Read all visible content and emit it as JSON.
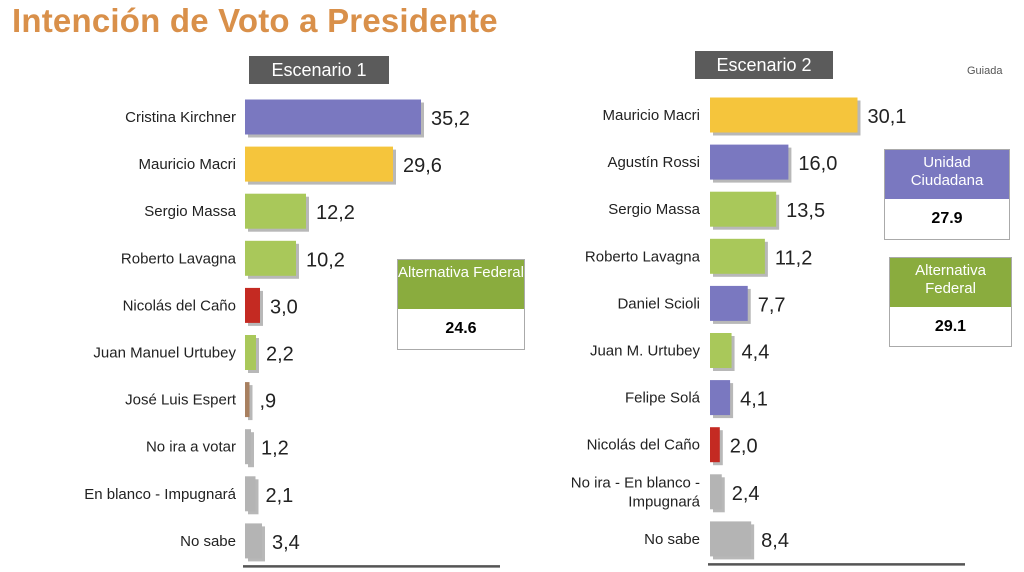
{
  "title": "Intención de Voto a Presidente",
  "source_note": "Guiada",
  "colors": {
    "title": "#d9904a",
    "purple": "#7a78c0",
    "yellow": "#f5c53c",
    "green": "#a9c85a",
    "red": "#c42a22",
    "grey": "#b4b4b4",
    "header_bg": "#5b5b5b"
  },
  "chart_data": [
    {
      "type": "bar",
      "orientation": "horizontal",
      "title": "Escenario 1",
      "categories": [
        "Cristina Kirchner",
        "Mauricio Macri",
        "Sergio Massa",
        "Roberto Lavagna",
        "Nicolás del Caño",
        "Juan Manuel Urtubey",
        "José Luis Espert",
        "No ira a votar",
        "En blanco - Impugnará",
        "No sabe"
      ],
      "values": [
        35.2,
        29.6,
        12.2,
        10.2,
        3.0,
        2.2,
        0.9,
        1.2,
        2.1,
        3.4
      ],
      "value_labels": [
        "35,2",
        "29,6",
        "12,2",
        "10,2",
        "3,0",
        "2,2",
        ",9",
        "1,2",
        "2,1",
        "3,4"
      ],
      "colors": [
        "purple",
        "yellow",
        "green",
        "green",
        "red",
        "green",
        "brown",
        "grey",
        "grey",
        "grey"
      ],
      "grid": false,
      "legend": "none"
    },
    {
      "type": "bar",
      "orientation": "horizontal",
      "title": "Escenario 2",
      "categories": [
        "Mauricio Macri",
        "Agustín Rossi",
        "Sergio Massa",
        "Roberto Lavagna",
        "Daniel Scioli",
        "Juan M. Urtubey",
        "Felipe Solá",
        "Nicolás del Caño",
        "No ira - En blanco - Impugnará",
        "No sabe"
      ],
      "values": [
        30.1,
        16.0,
        13.5,
        11.2,
        7.7,
        4.4,
        4.1,
        2.0,
        2.4,
        8.4
      ],
      "value_labels": [
        "30,1",
        "16,0",
        "13,5",
        "11,2",
        "7,7",
        "4,4",
        "4,1",
        "2,0",
        "2,4",
        "8,4"
      ],
      "colors": [
        "yellow",
        "purple",
        "green",
        "green",
        "purple",
        "green",
        "purple",
        "red",
        "grey",
        "grey"
      ],
      "grid": false,
      "legend": "none"
    }
  ],
  "summaries": {
    "scenario1": {
      "label": "Alternativa Federal",
      "value": "24.6"
    },
    "scenario2_uc": {
      "label": "Unidad Ciudadana",
      "value": "27.9"
    },
    "scenario2_af": {
      "label": "Alternativa Federal",
      "value": "29.1"
    }
  }
}
